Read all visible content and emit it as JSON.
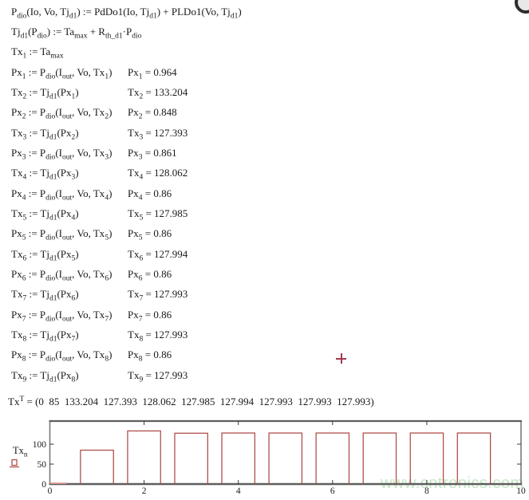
{
  "worksheet": {
    "equation_rows": [
      {
        "left": [
          [
            "t",
            "P"
          ],
          [
            "s",
            "dio"
          ],
          [
            "t",
            "(Io, Vo, Tj"
          ],
          [
            "s",
            "d1"
          ],
          [
            "t",
            ") := PdDo1(Io, Tj"
          ],
          [
            "s",
            "d1"
          ],
          [
            "t",
            ") + PLDo1(Vo, Tj"
          ],
          [
            "s",
            "d1"
          ],
          [
            "t",
            ")"
          ]
        ],
        "right": null
      },
      {
        "left": [
          [
            "t",
            "Tj"
          ],
          [
            "s",
            "d1"
          ],
          [
            "t",
            "(P"
          ],
          [
            "s",
            "dio"
          ],
          [
            "t",
            ") := Ta"
          ],
          [
            "s",
            "max"
          ],
          [
            "t",
            " + R"
          ],
          [
            "s",
            "th_d1"
          ],
          [
            "t",
            "·P"
          ],
          [
            "s",
            "dio"
          ]
        ],
        "right": null
      },
      {
        "left": [
          [
            "t",
            "Tx"
          ],
          [
            "s",
            "1"
          ],
          [
            "t",
            " := Ta"
          ],
          [
            "s",
            "max"
          ]
        ],
        "right": null
      },
      {
        "left": [
          [
            "t",
            "Px"
          ],
          [
            "s",
            "1"
          ],
          [
            "t",
            " := P"
          ],
          [
            "s",
            "dio"
          ],
          [
            "t",
            "(I"
          ],
          [
            "s",
            "out"
          ],
          [
            "t",
            ", Vo, Tx"
          ],
          [
            "s",
            "1"
          ],
          [
            "t",
            ")"
          ]
        ],
        "right": [
          [
            "t",
            "Px"
          ],
          [
            "s",
            "1"
          ],
          [
            "t",
            " = 0.964"
          ]
        ]
      },
      {
        "left": [
          [
            "t",
            "Tx"
          ],
          [
            "s",
            "2"
          ],
          [
            "t",
            " := Tj"
          ],
          [
            "s",
            "d1"
          ],
          [
            "t",
            "(Px"
          ],
          [
            "s",
            "1"
          ],
          [
            "t",
            ")"
          ]
        ],
        "right": [
          [
            "t",
            "Tx"
          ],
          [
            "s",
            "2"
          ],
          [
            "t",
            " = 133.204"
          ]
        ]
      },
      {
        "left": [
          [
            "t",
            "Px"
          ],
          [
            "s",
            "2"
          ],
          [
            "t",
            " := P"
          ],
          [
            "s",
            "dio"
          ],
          [
            "t",
            "(I"
          ],
          [
            "s",
            "out"
          ],
          [
            "t",
            ", Vo, Tx"
          ],
          [
            "s",
            "2"
          ],
          [
            "t",
            ")"
          ]
        ],
        "right": [
          [
            "t",
            "Px"
          ],
          [
            "s",
            "2"
          ],
          [
            "t",
            " = 0.848"
          ]
        ]
      },
      {
        "left": [
          [
            "t",
            "Tx"
          ],
          [
            "s",
            "3"
          ],
          [
            "t",
            " := Tj"
          ],
          [
            "s",
            "d1"
          ],
          [
            "t",
            "(Px"
          ],
          [
            "s",
            "2"
          ],
          [
            "t",
            ")"
          ]
        ],
        "right": [
          [
            "t",
            "Tx"
          ],
          [
            "s",
            "3"
          ],
          [
            "t",
            " = 127.393"
          ]
        ]
      },
      {
        "left": [
          [
            "t",
            "Px"
          ],
          [
            "s",
            "3"
          ],
          [
            "t",
            " := P"
          ],
          [
            "s",
            "dio"
          ],
          [
            "t",
            "(I"
          ],
          [
            "s",
            "out"
          ],
          [
            "t",
            ", Vo, Tx"
          ],
          [
            "s",
            "3"
          ],
          [
            "t",
            ")"
          ]
        ],
        "right": [
          [
            "t",
            "Px"
          ],
          [
            "s",
            "3"
          ],
          [
            "t",
            " = 0.861"
          ]
        ]
      },
      {
        "left": [
          [
            "t",
            "Tx"
          ],
          [
            "s",
            "4"
          ],
          [
            "t",
            " := Tj"
          ],
          [
            "s",
            "d1"
          ],
          [
            "t",
            "(Px"
          ],
          [
            "s",
            "3"
          ],
          [
            "t",
            ")"
          ]
        ],
        "right": [
          [
            "t",
            "Tx"
          ],
          [
            "s",
            "4"
          ],
          [
            "t",
            " = 128.062"
          ]
        ]
      },
      {
        "left": [
          [
            "t",
            "Px"
          ],
          [
            "s",
            "4"
          ],
          [
            "t",
            " := P"
          ],
          [
            "s",
            "dio"
          ],
          [
            "t",
            "(I"
          ],
          [
            "s",
            "out"
          ],
          [
            "t",
            ", Vo, Tx"
          ],
          [
            "s",
            "4"
          ],
          [
            "t",
            ")"
          ]
        ],
        "right": [
          [
            "t",
            "Px"
          ],
          [
            "s",
            "4"
          ],
          [
            "t",
            " = 0.86"
          ]
        ]
      },
      {
        "left": [
          [
            "t",
            "Tx"
          ],
          [
            "s",
            "5"
          ],
          [
            "t",
            " := Tj"
          ],
          [
            "s",
            "d1"
          ],
          [
            "t",
            "(Px"
          ],
          [
            "s",
            "4"
          ],
          [
            "t",
            ")"
          ]
        ],
        "right": [
          [
            "t",
            "Tx"
          ],
          [
            "s",
            "5"
          ],
          [
            "t",
            " = 127.985"
          ]
        ]
      },
      {
        "left": [
          [
            "t",
            "Px"
          ],
          [
            "s",
            "5"
          ],
          [
            "t",
            " := P"
          ],
          [
            "s",
            "dio"
          ],
          [
            "t",
            "(I"
          ],
          [
            "s",
            "out"
          ],
          [
            "t",
            ", Vo, Tx"
          ],
          [
            "s",
            "5"
          ],
          [
            "t",
            ")"
          ]
        ],
        "right": [
          [
            "t",
            "Px"
          ],
          [
            "s",
            "5"
          ],
          [
            "t",
            " = 0.86"
          ]
        ]
      },
      {
        "left": [
          [
            "t",
            "Tx"
          ],
          [
            "s",
            "6"
          ],
          [
            "t",
            " := Tj"
          ],
          [
            "s",
            "d1"
          ],
          [
            "t",
            "(Px"
          ],
          [
            "s",
            "5"
          ],
          [
            "t",
            ")"
          ]
        ],
        "right": [
          [
            "t",
            "Tx"
          ],
          [
            "s",
            "6"
          ],
          [
            "t",
            " = 127.994"
          ]
        ]
      },
      {
        "left": [
          [
            "t",
            "Px"
          ],
          [
            "s",
            "6"
          ],
          [
            "t",
            " := P"
          ],
          [
            "s",
            "dio"
          ],
          [
            "t",
            "(I"
          ],
          [
            "s",
            "out"
          ],
          [
            "t",
            ", Vo, Tx"
          ],
          [
            "s",
            "6"
          ],
          [
            "t",
            ")"
          ]
        ],
        "right": [
          [
            "t",
            "Px"
          ],
          [
            "s",
            "6"
          ],
          [
            "t",
            " = 0.86"
          ]
        ]
      },
      {
        "left": [
          [
            "t",
            "Tx"
          ],
          [
            "s",
            "7"
          ],
          [
            "t",
            " := Tj"
          ],
          [
            "s",
            "d1"
          ],
          [
            "t",
            "(Px"
          ],
          [
            "s",
            "6"
          ],
          [
            "t",
            ")"
          ]
        ],
        "right": [
          [
            "t",
            "Tx"
          ],
          [
            "s",
            "7"
          ],
          [
            "t",
            " = 127.993"
          ]
        ]
      },
      {
        "left": [
          [
            "t",
            "Px"
          ],
          [
            "s",
            "7"
          ],
          [
            "t",
            " := P"
          ],
          [
            "s",
            "dio"
          ],
          [
            "t",
            "(I"
          ],
          [
            "s",
            "out"
          ],
          [
            "t",
            ", Vo, Tx"
          ],
          [
            "s",
            "7"
          ],
          [
            "t",
            ")"
          ]
        ],
        "right": [
          [
            "t",
            "Px"
          ],
          [
            "s",
            "7"
          ],
          [
            "t",
            " = 0.86"
          ]
        ]
      },
      {
        "left": [
          [
            "t",
            "Tx"
          ],
          [
            "s",
            "8"
          ],
          [
            "t",
            " := Tj"
          ],
          [
            "s",
            "d1"
          ],
          [
            "t",
            "(Px"
          ],
          [
            "s",
            "7"
          ],
          [
            "t",
            ")"
          ]
        ],
        "right": [
          [
            "t",
            "Tx"
          ],
          [
            "s",
            "8"
          ],
          [
            "t",
            " = 127.993"
          ]
        ]
      },
      {
        "left": [
          [
            "t",
            "Px"
          ],
          [
            "s",
            "8"
          ],
          [
            "t",
            " := P"
          ],
          [
            "s",
            "dio"
          ],
          [
            "t",
            "(I"
          ],
          [
            "s",
            "out"
          ],
          [
            "t",
            ", Vo, Tx"
          ],
          [
            "s",
            "8"
          ],
          [
            "t",
            ")"
          ]
        ],
        "right": [
          [
            "t",
            "Px"
          ],
          [
            "s",
            "8"
          ],
          [
            "t",
            " = 0.86"
          ]
        ]
      },
      {
        "left": [
          [
            "t",
            "Tx"
          ],
          [
            "s",
            "9"
          ],
          [
            "t",
            " := Tj"
          ],
          [
            "s",
            "d1"
          ],
          [
            "t",
            "(Px"
          ],
          [
            "s",
            "8"
          ],
          [
            "t",
            ")"
          ]
        ],
        "right": [
          [
            "t",
            "Tx"
          ],
          [
            "s",
            "9"
          ],
          [
            "t",
            " = 127.993"
          ]
        ]
      }
    ],
    "vector_line": [
      [
        "t",
        "Tx"
      ],
      [
        "S",
        "T"
      ],
      [
        "t",
        " = (0  85  133.204  127.393  128.062  127.985  127.994  127.993  127.993  127.993)"
      ]
    ]
  },
  "chart_data": {
    "type": "bar",
    "x": [
      0,
      1,
      2,
      3,
      4,
      5,
      6,
      7,
      8,
      9
    ],
    "values": [
      0,
      85,
      133.204,
      127.393,
      128.062,
      127.985,
      127.994,
      127.993,
      127.993,
      127.993
    ],
    "title": "",
    "xlabel": "",
    "ylabel": "Tx_n",
    "ylabel_tokens": [
      [
        "t",
        "Tx"
      ],
      [
        "s",
        "n"
      ]
    ],
    "xlim": [
      0,
      10
    ],
    "ylim": [
      0,
      158
    ],
    "x_tick_labels": [
      0,
      2,
      4,
      6,
      8,
      10
    ],
    "y_tick_labels": [
      0,
      50,
      100
    ],
    "bar_width": 0.7,
    "grid": false,
    "legend_position": "left-of-axis",
    "bar_color": "#ad4a45",
    "zero_bar_color": "#d9908c",
    "frame_color": "#7a7a7a",
    "axis_color": "#5e5e5e",
    "tick_color": "#3a3a3a"
  },
  "watermark": {
    "text": "www.cntronics.com",
    "color": "#c4e6c3"
  },
  "colors": {
    "equation_text": "#1a1a1a",
    "crosshair": "#a13a4e"
  }
}
